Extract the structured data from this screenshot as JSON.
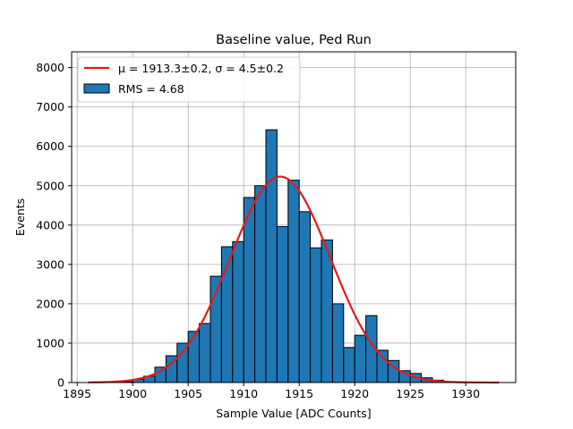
{
  "chart_data": {
    "type": "bar",
    "title": "Baseline value, Ped Run",
    "xlabel": "Sample Value [ADC Counts]",
    "ylabel": "Events",
    "xlim": [
      1894.5,
      1934.5
    ],
    "ylim": [
      0,
      8400
    ],
    "xticks": [
      1895,
      1900,
      1905,
      1910,
      1915,
      1920,
      1925,
      1930
    ],
    "yticks": [
      0,
      1000,
      2000,
      3000,
      4000,
      5000,
      6000,
      7000,
      8000
    ],
    "grid": true,
    "legend_position": "top-left",
    "bin_width": 1,
    "histogram": {
      "name": "RMS = 4.68",
      "color": "#1f77b4",
      "bin_left_edges": [
        1898,
        1899,
        1900,
        1901,
        1902,
        1903,
        1904,
        1905,
        1906,
        1907,
        1908,
        1909,
        1910,
        1911,
        1912,
        1913,
        1914,
        1915,
        1916,
        1917,
        1918,
        1919,
        1920,
        1921,
        1922,
        1923,
        1924,
        1925,
        1926,
        1927,
        1928
      ],
      "values": [
        10,
        20,
        80,
        160,
        390,
        680,
        1000,
        1300,
        1500,
        2700,
        3450,
        3580,
        4700,
        5000,
        6420,
        3960,
        5140,
        4340,
        3420,
        3620,
        2000,
        890,
        1200,
        1700,
        820,
        560,
        300,
        230,
        120,
        60,
        10
      ]
    },
    "fit": {
      "name": "μ = 1913.3±0.2, σ = 4.5±0.2",
      "color": "#e41a1c",
      "mu": 1913.3,
      "sigma": 4.5,
      "amplitude": 5230,
      "x_range": [
        1896,
        1933
      ]
    }
  }
}
